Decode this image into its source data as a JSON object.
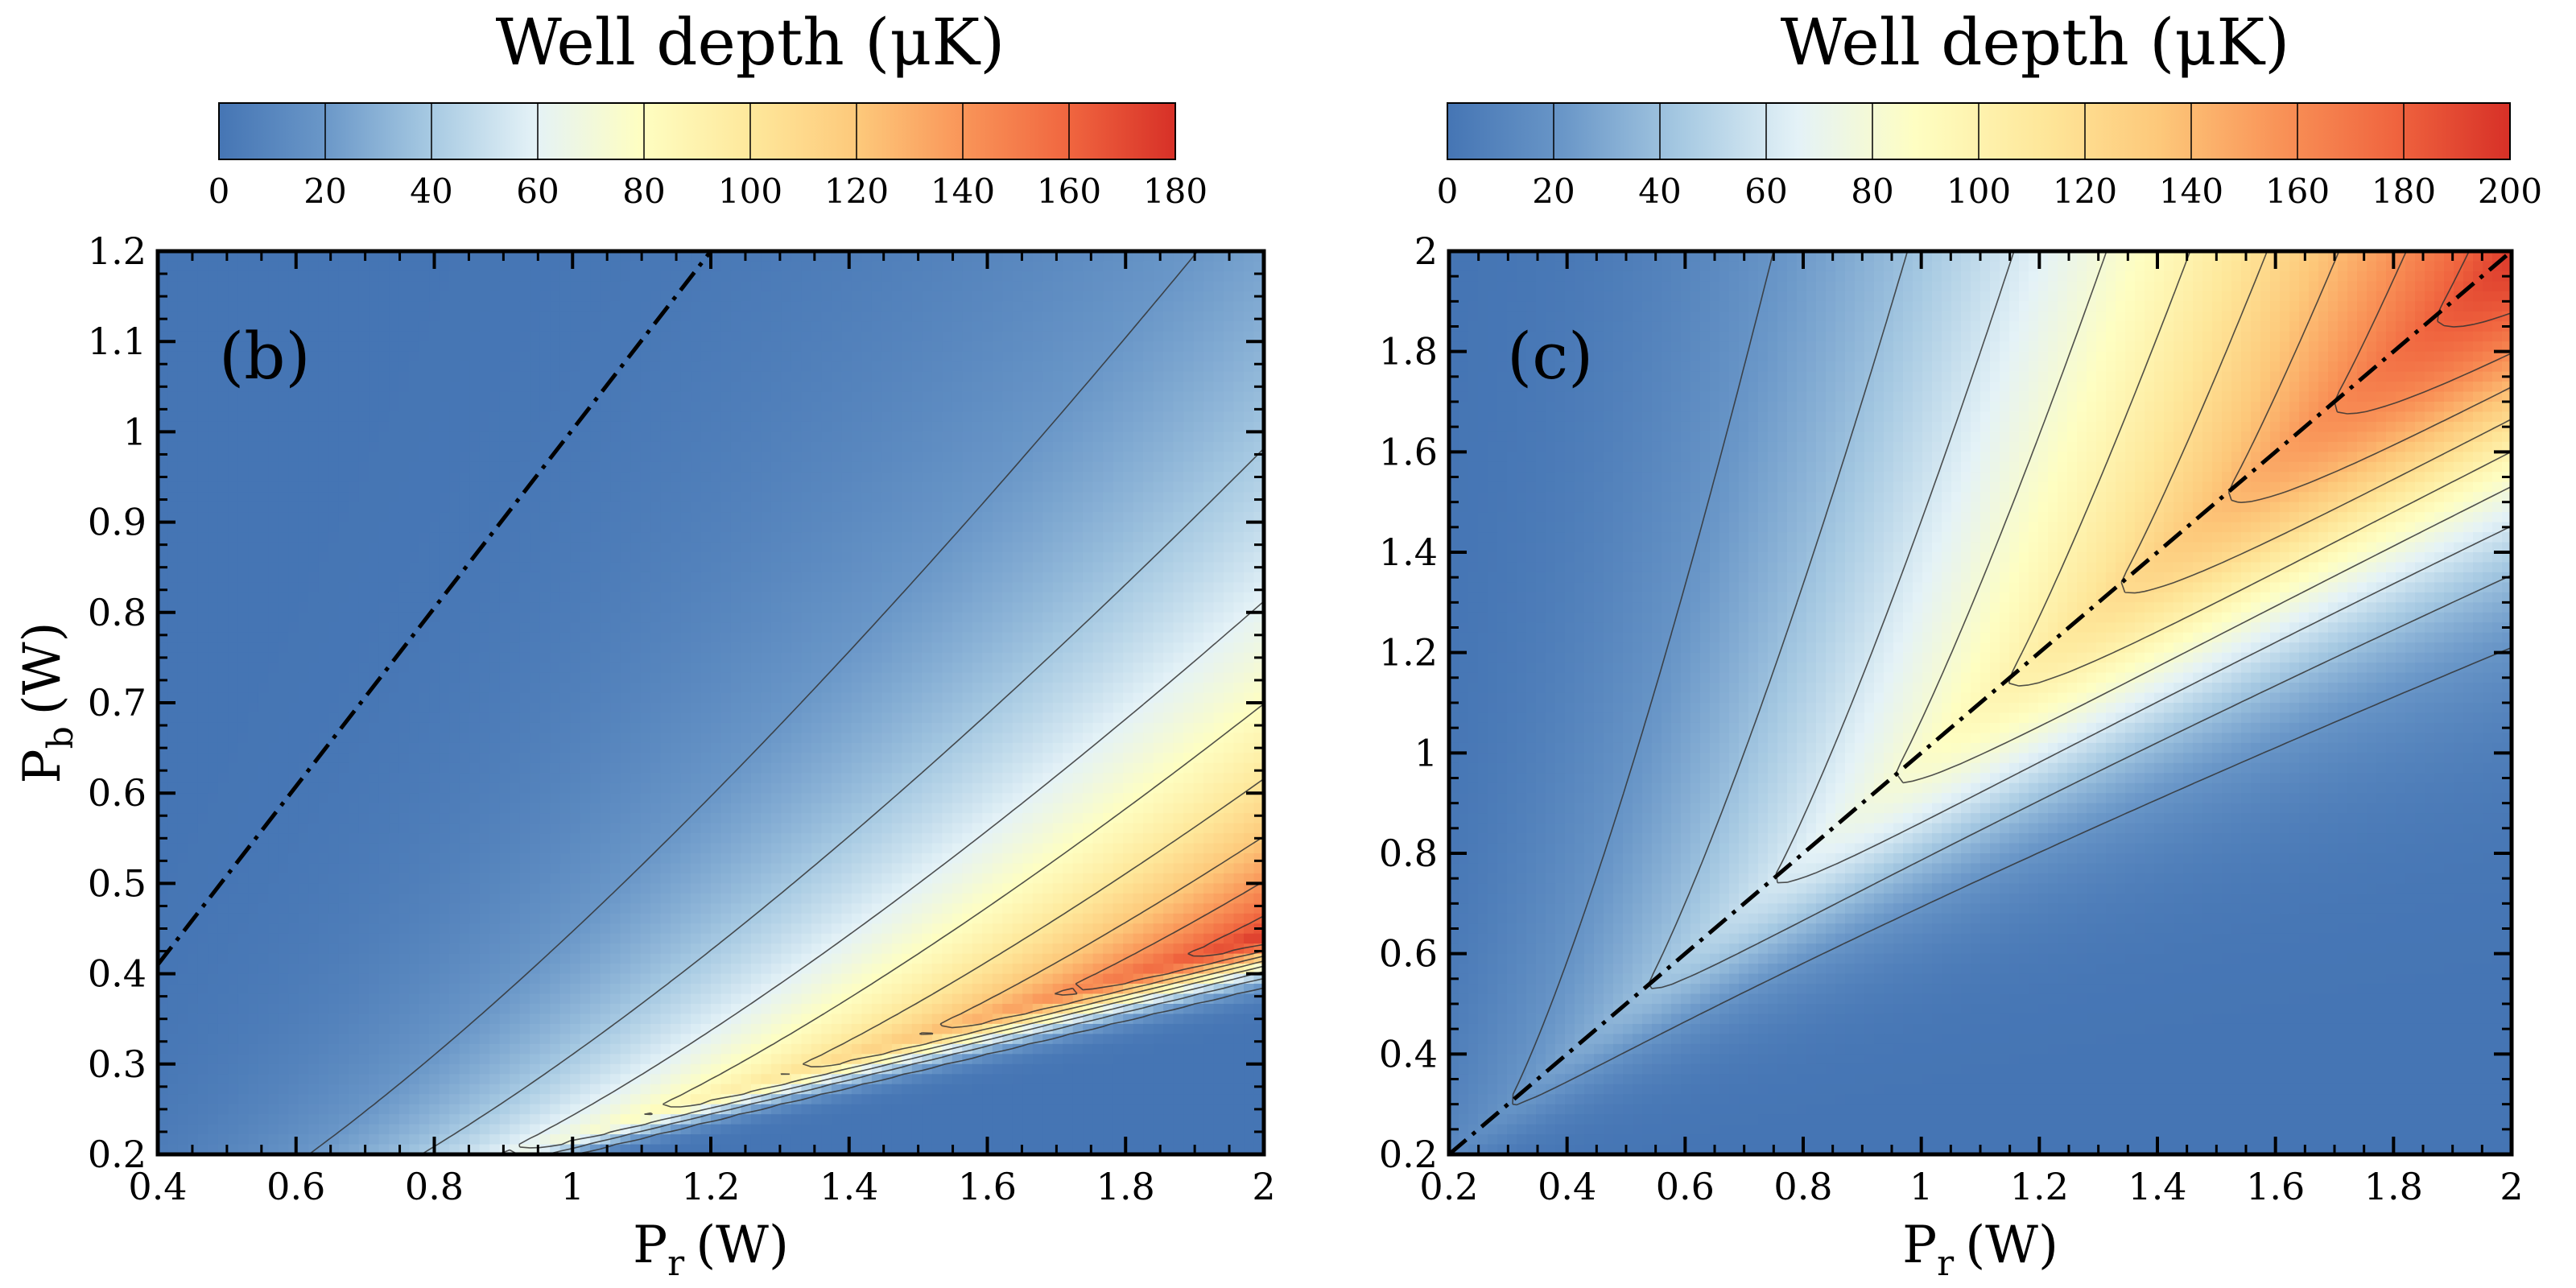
{
  "chart_data": [
    {
      "type": "heatmap",
      "panel_label": "(b)",
      "colorbar": {
        "title": "Well depth (μK)",
        "range": [
          0,
          180
        ],
        "ticks": [
          "0",
          "20",
          "40",
          "60",
          "80",
          "100",
          "120",
          "140",
          "160",
          "180"
        ]
      },
      "xlabel": {
        "base": "P",
        "sub": "r",
        "unit": "(W)"
      },
      "ylabel": {
        "base": "P",
        "sub": "b",
        "unit": "(W)"
      },
      "xlim": [
        0.4,
        2.0
      ],
      "ylim": [
        0.2,
        1.2
      ],
      "xticks": [
        "0.4",
        "0.6",
        "0.8",
        "1",
        "1.2",
        "1.4",
        "1.6",
        "1.8",
        "2"
      ],
      "yticks": [
        "0.2",
        "0.3",
        "0.4",
        "0.5",
        "0.6",
        "0.7",
        "0.8",
        "0.9",
        "1",
        "1.1",
        "1.2"
      ],
      "contour_levels": [
        20,
        40,
        60,
        80,
        100,
        120,
        140,
        160
      ],
      "ridge": "Pb ≈ 0.22·Pr (max ≈ 175 μK at Pr = 2 W)",
      "dashdot_line": {
        "x": [
          0.4,
          1.2
        ],
        "y": [
          0.41,
          1.2
        ]
      }
    },
    {
      "type": "heatmap",
      "panel_label": "(c)",
      "colorbar": {
        "title": "Well depth (μK)",
        "range": [
          0,
          200
        ],
        "ticks": [
          "0",
          "20",
          "40",
          "60",
          "80",
          "100",
          "120",
          "140",
          "160",
          "180",
          "200"
        ]
      },
      "xlabel": {
        "base": "P",
        "sub": "r",
        "unit": "(W)"
      },
      "ylabel": null,
      "xlim": [
        0.2,
        2.0
      ],
      "ylim": [
        0.2,
        2.0
      ],
      "xticks": [
        "0.2",
        "0.4",
        "0.6",
        "0.8",
        "1",
        "1.2",
        "1.4",
        "1.6",
        "1.8",
        "2"
      ],
      "yticks": [
        "0.2",
        "0.4",
        "0.6",
        "0.8",
        "1",
        "1.2",
        "1.4",
        "1.6",
        "1.8",
        "2"
      ],
      "contour_levels": [
        20,
        40,
        60,
        80,
        100,
        120,
        140,
        160,
        180
      ],
      "ridge": "Pb ≈ Pr (max ≈ 195 μK at Pr = 2 W)",
      "dashdot_line": {
        "x": [
          0.2,
          2.0
        ],
        "y": [
          0.2,
          2.0
        ]
      }
    }
  ]
}
